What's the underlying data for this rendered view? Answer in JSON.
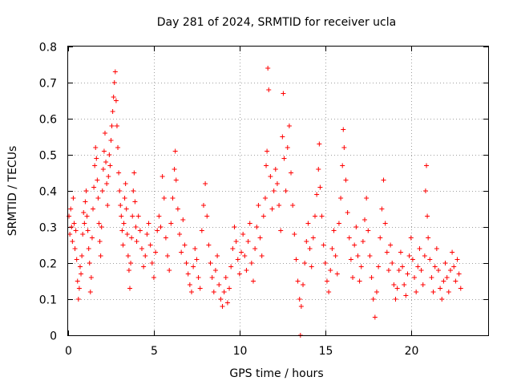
{
  "chart_data": {
    "type": "scatter",
    "title": "Day 281 of 2024, SRMTID for receiver ucla",
    "xlabel": "GPS time / hours",
    "ylabel": "SRMTID / TECUs",
    "xlim": [
      0,
      24.5
    ],
    "ylim": [
      0,
      0.8
    ],
    "x_ticks": [
      0,
      5,
      10,
      15,
      20
    ],
    "y_ticks": [
      0,
      0.1,
      0.2,
      0.3,
      0.4,
      0.5,
      0.6,
      0.7,
      0.8
    ],
    "x_tick_labels": [
      "0",
      "5",
      "10",
      "15",
      "20"
    ],
    "y_tick_labels": [
      "0",
      "0.1",
      "0.2",
      "0.3",
      "0.4",
      "0.5",
      "0.6",
      "0.7",
      "0.8"
    ],
    "grid": true,
    "marker": "plus",
    "color": "#ff0000",
    "series": [
      {
        "name": "SRMTID",
        "points": [
          [
            0.05,
            0.33
          ],
          [
            0.1,
            0.28
          ],
          [
            0.15,
            0.35
          ],
          [
            0.2,
            0.3
          ],
          [
            0.25,
            0.26
          ],
          [
            0.3,
            0.38
          ],
          [
            0.35,
            0.31
          ],
          [
            0.4,
            0.24
          ],
          [
            0.45,
            0.29
          ],
          [
            0.5,
            0.21
          ],
          [
            0.55,
            0.15
          ],
          [
            0.6,
            0.1
          ],
          [
            0.65,
            0.13
          ],
          [
            0.7,
            0.19
          ],
          [
            0.75,
            0.17
          ],
          [
            0.8,
            0.22
          ],
          [
            0.85,
            0.28
          ],
          [
            0.9,
            0.34
          ],
          [
            0.95,
            0.31
          ],
          [
            1.0,
            0.37
          ],
          [
            1.05,
            0.4
          ],
          [
            1.1,
            0.33
          ],
          [
            1.15,
            0.29
          ],
          [
            1.2,
            0.24
          ],
          [
            1.25,
            0.2
          ],
          [
            1.3,
            0.12
          ],
          [
            1.35,
            0.16
          ],
          [
            1.4,
            0.27
          ],
          [
            1.45,
            0.35
          ],
          [
            1.5,
            0.41
          ],
          [
            1.55,
            0.47
          ],
          [
            1.6,
            0.52
          ],
          [
            1.65,
            0.49
          ],
          [
            1.7,
            0.43
          ],
          [
            1.75,
            0.38
          ],
          [
            1.8,
            0.31
          ],
          [
            1.85,
            0.26
          ],
          [
            1.9,
            0.22
          ],
          [
            1.95,
            0.3
          ],
          [
            2.0,
            0.4
          ],
          [
            2.05,
            0.46
          ],
          [
            2.1,
            0.51
          ],
          [
            2.15,
            0.56
          ],
          [
            2.2,
            0.48
          ],
          [
            2.25,
            0.42
          ],
          [
            2.3,
            0.36
          ],
          [
            2.35,
            0.44
          ],
          [
            2.4,
            0.5
          ],
          [
            2.45,
            0.47
          ],
          [
            2.5,
            0.54
          ],
          [
            2.55,
            0.58
          ],
          [
            2.6,
            0.62
          ],
          [
            2.65,
            0.66
          ],
          [
            2.7,
            0.7
          ],
          [
            2.75,
            0.73
          ],
          [
            2.8,
            0.65
          ],
          [
            2.85,
            0.58
          ],
          [
            2.9,
            0.52
          ],
          [
            2.95,
            0.45
          ],
          [
            3.0,
            0.4
          ],
          [
            3.05,
            0.36
          ],
          [
            3.1,
            0.33
          ],
          [
            3.15,
            0.29
          ],
          [
            3.2,
            0.25
          ],
          [
            3.25,
            0.31
          ],
          [
            3.3,
            0.38
          ],
          [
            3.35,
            0.42
          ],
          [
            3.4,
            0.35
          ],
          [
            3.45,
            0.28
          ],
          [
            3.5,
            0.22
          ],
          [
            3.55,
            0.18
          ],
          [
            3.6,
            0.13
          ],
          [
            3.65,
            0.2
          ],
          [
            3.7,
            0.27
          ],
          [
            3.75,
            0.33
          ],
          [
            3.8,
            0.4
          ],
          [
            3.85,
            0.45
          ],
          [
            3.9,
            0.37
          ],
          [
            3.95,
            0.3
          ],
          [
            4.0,
            0.26
          ],
          [
            4.1,
            0.33
          ],
          [
            4.2,
            0.29
          ],
          [
            4.3,
            0.24
          ],
          [
            4.4,
            0.19
          ],
          [
            4.5,
            0.22
          ],
          [
            4.6,
            0.28
          ],
          [
            4.7,
            0.31
          ],
          [
            4.8,
            0.25
          ],
          [
            4.9,
            0.2
          ],
          [
            5.0,
            0.16
          ],
          [
            5.1,
            0.23
          ],
          [
            5.2,
            0.29
          ],
          [
            5.3,
            0.33
          ],
          [
            5.4,
            0.3
          ],
          [
            5.5,
            0.44
          ],
          [
            5.6,
            0.38
          ],
          [
            5.7,
            0.27
          ],
          [
            5.8,
            0.22
          ],
          [
            5.9,
            0.18
          ],
          [
            6.0,
            0.31
          ],
          [
            6.1,
            0.38
          ],
          [
            6.2,
            0.46
          ],
          [
            6.25,
            0.51
          ],
          [
            6.3,
            0.43
          ],
          [
            6.4,
            0.35
          ],
          [
            6.5,
            0.28
          ],
          [
            6.6,
            0.23
          ],
          [
            6.7,
            0.32
          ],
          [
            6.8,
            0.25
          ],
          [
            6.9,
            0.2
          ],
          [
            7.0,
            0.17
          ],
          [
            7.1,
            0.14
          ],
          [
            7.2,
            0.12
          ],
          [
            7.3,
            0.19
          ],
          [
            7.4,
            0.24
          ],
          [
            7.5,
            0.21
          ],
          [
            7.6,
            0.16
          ],
          [
            7.7,
            0.13
          ],
          [
            7.8,
            0.29
          ],
          [
            7.9,
            0.36
          ],
          [
            8.0,
            0.42
          ],
          [
            8.1,
            0.33
          ],
          [
            8.2,
            0.25
          ],
          [
            8.3,
            0.2
          ],
          [
            8.4,
            0.16
          ],
          [
            8.5,
            0.12
          ],
          [
            8.6,
            0.18
          ],
          [
            8.7,
            0.22
          ],
          [
            8.8,
            0.14
          ],
          [
            8.9,
            0.1
          ],
          [
            9.0,
            0.08
          ],
          [
            9.1,
            0.12
          ],
          [
            9.2,
            0.16
          ],
          [
            9.3,
            0.09
          ],
          [
            9.4,
            0.13
          ],
          [
            9.5,
            0.19
          ],
          [
            9.6,
            0.24
          ],
          [
            9.7,
            0.3
          ],
          [
            9.8,
            0.26
          ],
          [
            9.9,
            0.21
          ],
          [
            10.0,
            0.17
          ],
          [
            10.1,
            0.23
          ],
          [
            10.2,
            0.28
          ],
          [
            10.3,
            0.22
          ],
          [
            10.4,
            0.18
          ],
          [
            10.5,
            0.26
          ],
          [
            10.6,
            0.31
          ],
          [
            10.7,
            0.2
          ],
          [
            10.8,
            0.15
          ],
          [
            10.9,
            0.24
          ],
          [
            11.0,
            0.3
          ],
          [
            11.1,
            0.36
          ],
          [
            11.2,
            0.27
          ],
          [
            11.3,
            0.22
          ],
          [
            11.4,
            0.33
          ],
          [
            11.5,
            0.38
          ],
          [
            11.55,
            0.47
          ],
          [
            11.6,
            0.51
          ],
          [
            11.65,
            0.74
          ],
          [
            11.7,
            0.68
          ],
          [
            11.8,
            0.44
          ],
          [
            11.9,
            0.35
          ],
          [
            12.0,
            0.4
          ],
          [
            12.1,
            0.46
          ],
          [
            12.2,
            0.42
          ],
          [
            12.3,
            0.36
          ],
          [
            12.4,
            0.29
          ],
          [
            12.5,
            0.55
          ],
          [
            12.55,
            0.67
          ],
          [
            12.6,
            0.49
          ],
          [
            12.7,
            0.4
          ],
          [
            12.8,
            0.52
          ],
          [
            12.9,
            0.58
          ],
          [
            13.0,
            0.45
          ],
          [
            13.1,
            0.36
          ],
          [
            13.2,
            0.28
          ],
          [
            13.3,
            0.21
          ],
          [
            13.4,
            0.15
          ],
          [
            13.5,
            0.1
          ],
          [
            13.55,
            0.0
          ],
          [
            13.6,
            0.08
          ],
          [
            13.7,
            0.14
          ],
          [
            13.8,
            0.2
          ],
          [
            13.9,
            0.26
          ],
          [
            14.0,
            0.31
          ],
          [
            14.1,
            0.24
          ],
          [
            14.2,
            0.19
          ],
          [
            14.3,
            0.27
          ],
          [
            14.4,
            0.33
          ],
          [
            14.5,
            0.39
          ],
          [
            14.6,
            0.46
          ],
          [
            14.65,
            0.53
          ],
          [
            14.7,
            0.41
          ],
          [
            14.8,
            0.33
          ],
          [
            14.9,
            0.25
          ],
          [
            15.0,
            0.2
          ],
          [
            15.1,
            0.15
          ],
          [
            15.2,
            0.12
          ],
          [
            15.3,
            0.18
          ],
          [
            15.4,
            0.24
          ],
          [
            15.5,
            0.29
          ],
          [
            15.6,
            0.22
          ],
          [
            15.7,
            0.17
          ],
          [
            15.8,
            0.31
          ],
          [
            15.9,
            0.38
          ],
          [
            16.0,
            0.47
          ],
          [
            16.05,
            0.57
          ],
          [
            16.1,
            0.52
          ],
          [
            16.2,
            0.43
          ],
          [
            16.3,
            0.34
          ],
          [
            16.4,
            0.27
          ],
          [
            16.5,
            0.21
          ],
          [
            16.6,
            0.16
          ],
          [
            16.7,
            0.25
          ],
          [
            16.8,
            0.3
          ],
          [
            16.9,
            0.22
          ],
          [
            17.0,
            0.15
          ],
          [
            17.1,
            0.19
          ],
          [
            17.2,
            0.26
          ],
          [
            17.3,
            0.32
          ],
          [
            17.4,
            0.38
          ],
          [
            17.5,
            0.29
          ],
          [
            17.6,
            0.22
          ],
          [
            17.7,
            0.16
          ],
          [
            17.8,
            0.1
          ],
          [
            17.9,
            0.05
          ],
          [
            18.0,
            0.12
          ],
          [
            18.1,
            0.19
          ],
          [
            18.2,
            0.27
          ],
          [
            18.3,
            0.35
          ],
          [
            18.4,
            0.43
          ],
          [
            18.5,
            0.31
          ],
          [
            18.6,
            0.23
          ],
          [
            18.7,
            0.18
          ],
          [
            18.8,
            0.25
          ],
          [
            18.9,
            0.2
          ],
          [
            19.0,
            0.14
          ],
          [
            19.1,
            0.1
          ],
          [
            19.2,
            0.13
          ],
          [
            19.3,
            0.18
          ],
          [
            19.4,
            0.23
          ],
          [
            19.5,
            0.19
          ],
          [
            19.6,
            0.14
          ],
          [
            19.7,
            0.11
          ],
          [
            19.8,
            0.17
          ],
          [
            19.9,
            0.22
          ],
          [
            20.0,
            0.27
          ],
          [
            20.1,
            0.21
          ],
          [
            20.2,
            0.16
          ],
          [
            20.3,
            0.12
          ],
          [
            20.4,
            0.19
          ],
          [
            20.5,
            0.24
          ],
          [
            20.6,
            0.18
          ],
          [
            20.7,
            0.14
          ],
          [
            20.8,
            0.22
          ],
          [
            20.85,
            0.4
          ],
          [
            20.9,
            0.47
          ],
          [
            20.95,
            0.33
          ],
          [
            21.0,
            0.27
          ],
          [
            21.1,
            0.21
          ],
          [
            21.2,
            0.16
          ],
          [
            21.3,
            0.12
          ],
          [
            21.4,
            0.19
          ],
          [
            21.5,
            0.24
          ],
          [
            21.6,
            0.18
          ],
          [
            21.7,
            0.13
          ],
          [
            21.8,
            0.1
          ],
          [
            21.9,
            0.15
          ],
          [
            22.0,
            0.2
          ],
          [
            22.1,
            0.16
          ],
          [
            22.2,
            0.12
          ],
          [
            22.3,
            0.18
          ],
          [
            22.4,
            0.23
          ],
          [
            22.5,
            0.19
          ],
          [
            22.6,
            0.15
          ],
          [
            22.7,
            0.21
          ],
          [
            22.8,
            0.17
          ],
          [
            22.9,
            0.13
          ]
        ]
      }
    ]
  }
}
